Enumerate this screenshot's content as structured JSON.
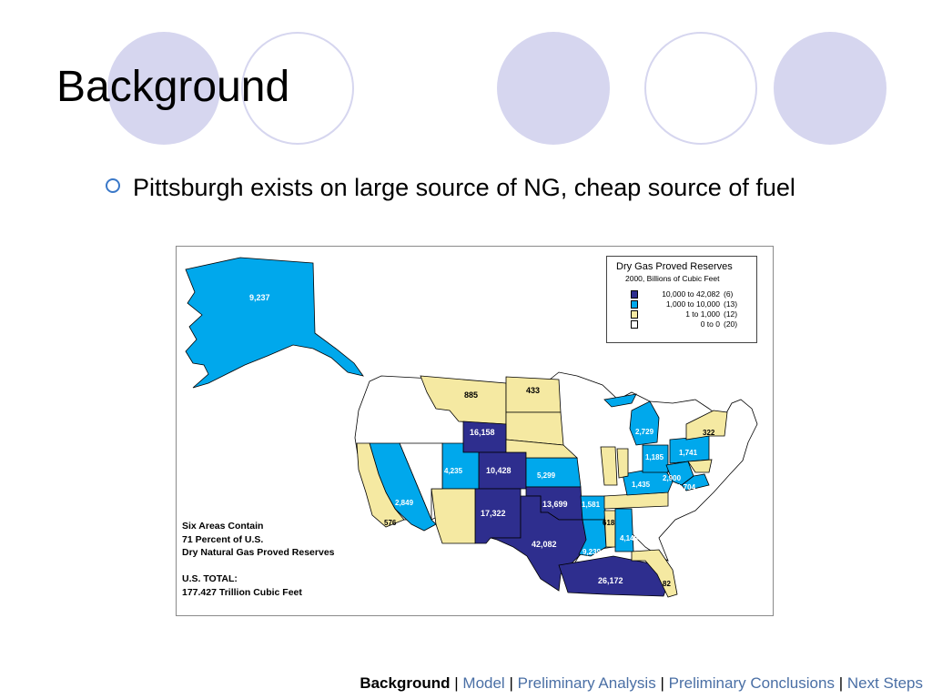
{
  "slide": {
    "title": "Background",
    "bullet": "Pittsburgh exists on large source of NG, cheap source of fuel"
  },
  "map": {
    "legend": {
      "title": "Dry Gas Proved Reserves",
      "subtitle": "2000, Billions of Cubic Feet",
      "rows": [
        {
          "range": "10,000 to 42,082",
          "count": "(6)",
          "color": "#2e2e8e"
        },
        {
          "range": "1,000 to 10,000",
          "count": "(13)",
          "color": "#00a8ec"
        },
        {
          "range": "1 to   1,000",
          "count": "(12)",
          "color": "#f5e9a2"
        },
        {
          "range": "0 to        0",
          "count": "(20)",
          "color": "#ffffff"
        }
      ]
    },
    "note_lines": [
      "Six Areas Contain",
      "71 Percent of U.S.",
      "Dry Natural Gas Proved Reserves",
      "",
      "U.S. TOTAL:",
      "177.427 Trillion Cubic Feet"
    ],
    "areas": {
      "alaska": "9,237",
      "montana": "885",
      "north_dakota": "433",
      "wyoming": "16,158",
      "colorado": "10,428",
      "utah": "4,235",
      "kansas": "5,299",
      "new_mexico": "17,322",
      "oklahoma": "13,699",
      "texas": "42,082",
      "gulf_of_mexico": "26,172",
      "california": "2,849",
      "california_offshore": "576",
      "arkansas": "1,581",
      "mississippi": "618",
      "louisiana": "9,239",
      "alabama": "4,149",
      "florida": "82",
      "michigan": "2,729",
      "new_york": "322",
      "pennsylvania": "1,741",
      "ohio": "1,185",
      "west_virginia": "2,900",
      "kentucky": "1,435",
      "virginia": "1,704"
    },
    "colors": {
      "high": "#2e2e8e",
      "mid": "#00a8ec",
      "low": "#f5e9a2",
      "none": "#ffffff"
    }
  },
  "footer": {
    "current": "Background",
    "items": [
      "Model",
      "Preliminary Analysis",
      "Preliminary Conclusions",
      "Next Steps"
    ],
    "separator": "|"
  }
}
